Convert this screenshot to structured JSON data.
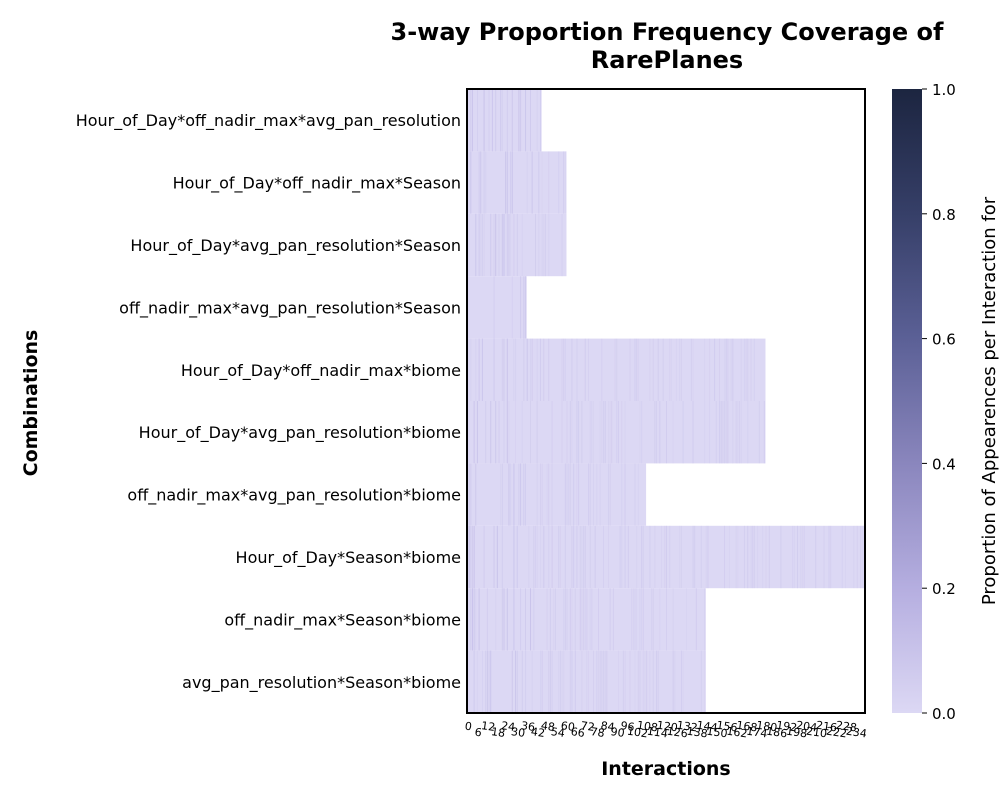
{
  "chart_data": {
    "type": "heatmap",
    "title_lines": [
      "3-way Proportion Frequency Coverage of",
      "RarePlanes"
    ],
    "xlabel": "Interactions",
    "ylabel": "Combinations",
    "colorbar_label": "Proportion of Appearences per Interaction for",
    "colorbar_range": [
      0,
      1
    ],
    "colorbar_ticks": [
      "0.0",
      "0.2",
      "0.4",
      "0.6",
      "0.8",
      "1.0"
    ],
    "colormap": [
      "#dcd8f4",
      "#b5aee0",
      "#8a86bd",
      "#5b6096",
      "#363f68",
      "#1c2540"
    ],
    "x_tick_labels": [
      "0",
      "6",
      "12",
      "18",
      "24",
      "30",
      "36",
      "42",
      "48",
      "54",
      "60",
      "66",
      "72",
      "78",
      "84",
      "90",
      "96",
      "102",
      "108",
      "114",
      "120",
      "126",
      "132",
      "138",
      "144",
      "150",
      "156",
      "162",
      "168",
      "174",
      "180",
      "186",
      "192",
      "198",
      "204",
      "210",
      "216",
      "222",
      "228",
      "234"
    ],
    "n_columns": 240,
    "rows": [
      {
        "label": "Hour_of_Day*off_nadir_max*avg_pan_resolution",
        "interactions": 45
      },
      {
        "label": "Hour_of_Day*off_nadir_max*Season",
        "interactions": 60
      },
      {
        "label": "Hour_of_Day*avg_pan_resolution*Season",
        "interactions": 60
      },
      {
        "label": "off_nadir_max*avg_pan_resolution*Season",
        "interactions": 36
      },
      {
        "label": "Hour_of_Day*off_nadir_max*biome",
        "interactions": 180
      },
      {
        "label": "Hour_of_Day*avg_pan_resolution*biome",
        "interactions": 180
      },
      {
        "label": "off_nadir_max*avg_pan_resolution*biome",
        "interactions": 108
      },
      {
        "label": "Hour_of_Day*Season*biome",
        "interactions": 240
      },
      {
        "label": "off_nadir_max*Season*biome",
        "interactions": 144
      },
      {
        "label": "avg_pan_resolution*Season*biome",
        "interactions": 144
      }
    ]
  }
}
